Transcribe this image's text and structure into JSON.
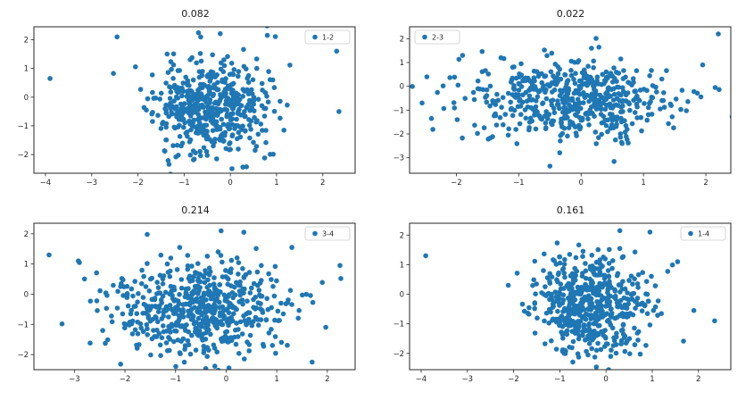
{
  "figure": {
    "background": "#ffffff",
    "dot_color": "#1f77b4",
    "axis_color": "#262626",
    "legend_border": "#cccccc"
  },
  "chart_data": [
    {
      "type": "scatter",
      "title": "0.082",
      "legend": {
        "label": "1-2",
        "position": "top-right"
      },
      "xlim": [
        -4.25,
        2.7
      ],
      "ylim": [
        -2.65,
        2.45
      ],
      "xticks": [
        -4,
        -3,
        -2,
        -1,
        0,
        1,
        2
      ],
      "yticks": [
        -2,
        -1,
        0,
        1,
        2
      ],
      "grid": false,
      "cloud": {
        "n": 520,
        "cx": -0.45,
        "cy": -0.35,
        "sx": 0.6,
        "sy": 0.82,
        "seed": 11
      },
      "outliers": [
        [
          -3.9,
          0.65
        ],
        [
          -2.45,
          2.1
        ],
        [
          0.8,
          2.15
        ],
        [
          2.3,
          1.6
        ],
        [
          2.35,
          -0.5
        ]
      ]
    },
    {
      "type": "scatter",
      "title": "0.022",
      "legend": {
        "label": "2-3",
        "position": "top-left"
      },
      "xlim": [
        -2.75,
        2.4
      ],
      "ylim": [
        -3.65,
        2.5
      ],
      "xticks": [
        -2,
        -1,
        0,
        1,
        2
      ],
      "yticks": [
        -3,
        -2,
        -1,
        0,
        1,
        2
      ],
      "grid": false,
      "cloud": {
        "n": 560,
        "cx": -0.15,
        "cy": -0.55,
        "sx": 0.82,
        "sy": 0.78,
        "seed": 22
      },
      "outliers": [
        [
          2.2,
          2.2
        ],
        [
          -2.55,
          -0.7
        ],
        [
          -2.4,
          -1.35
        ],
        [
          2.15,
          -0.05
        ],
        [
          -0.5,
          -3.35
        ],
        [
          1.95,
          0.9
        ],
        [
          -1.9,
          1.3
        ]
      ]
    },
    {
      "type": "scatter",
      "title": "0.214",
      "legend": {
        "label": "3-4",
        "position": "top-right"
      },
      "xlim": [
        -3.8,
        2.55
      ],
      "ylim": [
        -2.5,
        2.35
      ],
      "xticks": [
        -3,
        -2,
        -1,
        0,
        1,
        2
      ],
      "yticks": [
        -2,
        -1,
        0,
        1,
        2
      ],
      "grid": false,
      "cloud": {
        "n": 600,
        "cx": -0.55,
        "cy": -0.5,
        "sx": 0.88,
        "sy": 0.78,
        "seed": 33
      },
      "outliers": [
        [
          -3.5,
          1.3
        ],
        [
          -2.9,
          1.05
        ],
        [
          1.7,
          -2.25
        ],
        [
          2.25,
          0.95
        ],
        [
          -0.1,
          2.1
        ],
        [
          0.35,
          2.05
        ],
        [
          1.3,
          1.55
        ]
      ]
    },
    {
      "type": "scatter",
      "title": "0.161",
      "legend": {
        "label": "1-4",
        "position": "top-right"
      },
      "xlim": [
        -4.25,
        2.7
      ],
      "ylim": [
        -2.55,
        2.4
      ],
      "xticks": [
        -4,
        -3,
        -2,
        -1,
        0,
        1,
        2
      ],
      "yticks": [
        -2,
        -1,
        0,
        1,
        2
      ],
      "grid": false,
      "cloud": {
        "n": 560,
        "cx": -0.35,
        "cy": -0.45,
        "sx": 0.62,
        "sy": 0.8,
        "seed": 44
      },
      "outliers": [
        [
          -3.9,
          1.3
        ],
        [
          0.95,
          2.1
        ],
        [
          0.3,
          2.15
        ],
        [
          2.35,
          -0.9
        ],
        [
          1.9,
          -0.55
        ],
        [
          1.55,
          1.1
        ]
      ]
    }
  ]
}
